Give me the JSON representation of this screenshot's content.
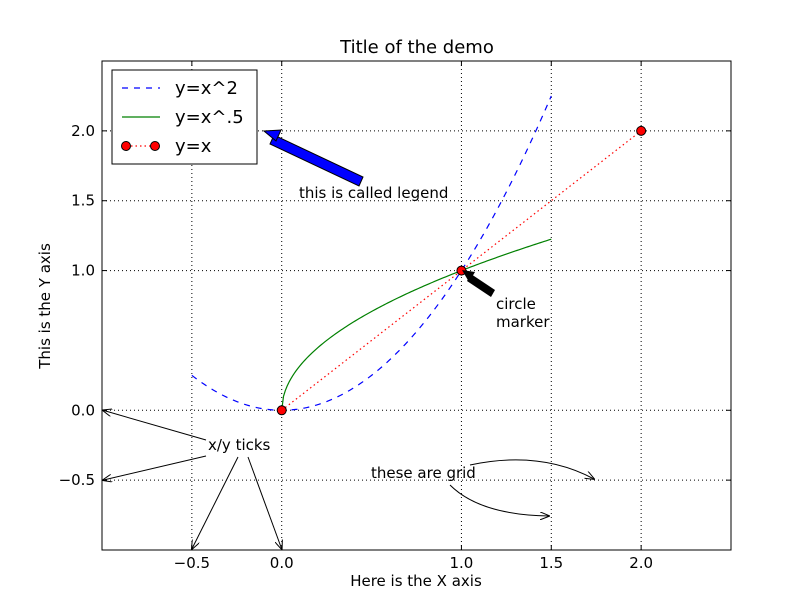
{
  "chart_data": {
    "type": "line",
    "title": "Title of the demo",
    "xlabel": "Here is the X axis",
    "ylabel": "This is the Y axis",
    "xlim": [
      -1.0,
      2.5
    ],
    "ylim": [
      -1.0,
      2.5
    ],
    "grid": true,
    "legend_position": "top-left",
    "x_ticks": [
      -0.5,
      0.0,
      1.0,
      1.5,
      2.0
    ],
    "x_tick_labels": [
      "−0.5",
      "0.0",
      "1.0",
      "1.5",
      "2.0"
    ],
    "y_ticks": [
      -0.5,
      0.0,
      1.0,
      1.5,
      2.0
    ],
    "y_tick_labels": [
      "−0.5",
      "0.0",
      "1.0",
      "1.5",
      "2.0"
    ],
    "series": [
      {
        "name": "y=x^2",
        "function": "x^2",
        "x_range": [
          -0.5,
          1.5
        ],
        "color": "#0000ff",
        "style": "dashed",
        "marker": "none"
      },
      {
        "name": "y=x^.5",
        "function": "x^0.5",
        "x_range": [
          0.0,
          1.5
        ],
        "color": "#008000",
        "style": "solid",
        "marker": "none"
      },
      {
        "name": "y=x",
        "function": "x",
        "points": [
          [
            0,
            0
          ],
          [
            1,
            1
          ],
          [
            2,
            2
          ]
        ],
        "color": "#ff0000",
        "style": "dotted",
        "marker": "circle"
      }
    ],
    "annotations": {
      "legend_note": "this is called legend",
      "marker_note_line1": "circle",
      "marker_note_line2": "marker",
      "ticks_note": "x/y ticks",
      "grid_note": "these are grid"
    }
  }
}
